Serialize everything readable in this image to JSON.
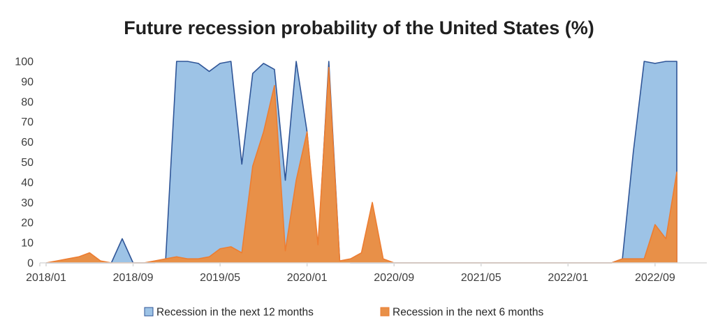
{
  "title": "Future recession probability of the United States (%)",
  "chart_data": {
    "type": "area",
    "title": "Future recession probability of the United States (%)",
    "xlabel": "",
    "ylabel": "",
    "ylim": [
      0,
      100
    ],
    "y_ticks": [
      0,
      10,
      20,
      30,
      40,
      50,
      60,
      70,
      80,
      90,
      100
    ],
    "grid": false,
    "legend_position": "bottom",
    "x": [
      "2018/01",
      "2018/02",
      "2018/03",
      "2018/04",
      "2018/05",
      "2018/06",
      "2018/07",
      "2018/08",
      "2018/09",
      "2018/10",
      "2018/11",
      "2018/12",
      "2019/01",
      "2019/02",
      "2019/03",
      "2019/04",
      "2019/05",
      "2019/06",
      "2019/07",
      "2019/08",
      "2019/09",
      "2019/10",
      "2019/11",
      "2019/12",
      "2020/01",
      "2020/02",
      "2020/03",
      "2020/04",
      "2020/05",
      "2020/06",
      "2020/07",
      "2020/08",
      "2020/09",
      "2020/10",
      "2020/11",
      "2020/12",
      "2021/01",
      "2021/02",
      "2021/03",
      "2021/04",
      "2021/05",
      "2021/06",
      "2021/07",
      "2021/08",
      "2021/09",
      "2021/10",
      "2021/11",
      "2021/12",
      "2022/01",
      "2022/02",
      "2022/03",
      "2022/04",
      "2022/05",
      "2022/06",
      "2022/07",
      "2022/08",
      "2022/09",
      "2022/10",
      "2022/11"
    ],
    "x_tick_labels": [
      "2018/01",
      "2018/09",
      "2019/05",
      "2020/01",
      "2020/09",
      "2021/05",
      "2022/01",
      "2022/09"
    ],
    "x_tick_month_indices": [
      0,
      8,
      16,
      24,
      32,
      40,
      48,
      56
    ],
    "series": [
      {
        "name": "Recession in the next 12 months",
        "fill_color": "#9DC3E6",
        "line_color": "#2F5597",
        "values": [
          0,
          0,
          0,
          0,
          0,
          0,
          0,
          12,
          0,
          0,
          0,
          2,
          100,
          100,
          99,
          95,
          99,
          100,
          49,
          94,
          99,
          96,
          41,
          100,
          65,
          6,
          100,
          1,
          0,
          0,
          0,
          0,
          0,
          0,
          0,
          0,
          0,
          0,
          0,
          0,
          0,
          0,
          0,
          0,
          0,
          0,
          0,
          0,
          0,
          0,
          0,
          0,
          0,
          2,
          55,
          100,
          99,
          100,
          100
        ]
      },
      {
        "name": "Recession in the next 6 months",
        "fill_color": "#E89048",
        "line_color": "#ED7D31",
        "values": [
          0,
          1,
          2,
          3,
          5,
          1,
          0,
          0,
          0,
          0,
          1,
          2,
          3,
          2,
          2,
          3,
          7,
          8,
          5,
          48,
          65,
          88,
          6,
          41,
          65,
          9,
          97,
          1,
          2,
          5,
          30,
          2,
          0,
          0,
          0,
          0,
          0,
          0,
          0,
          0,
          0,
          0,
          0,
          0,
          0,
          0,
          0,
          0,
          0,
          0,
          0,
          0,
          0,
          2,
          2,
          2,
          19,
          12,
          45
        ]
      }
    ],
    "axis_color": "#D9D9D9"
  }
}
